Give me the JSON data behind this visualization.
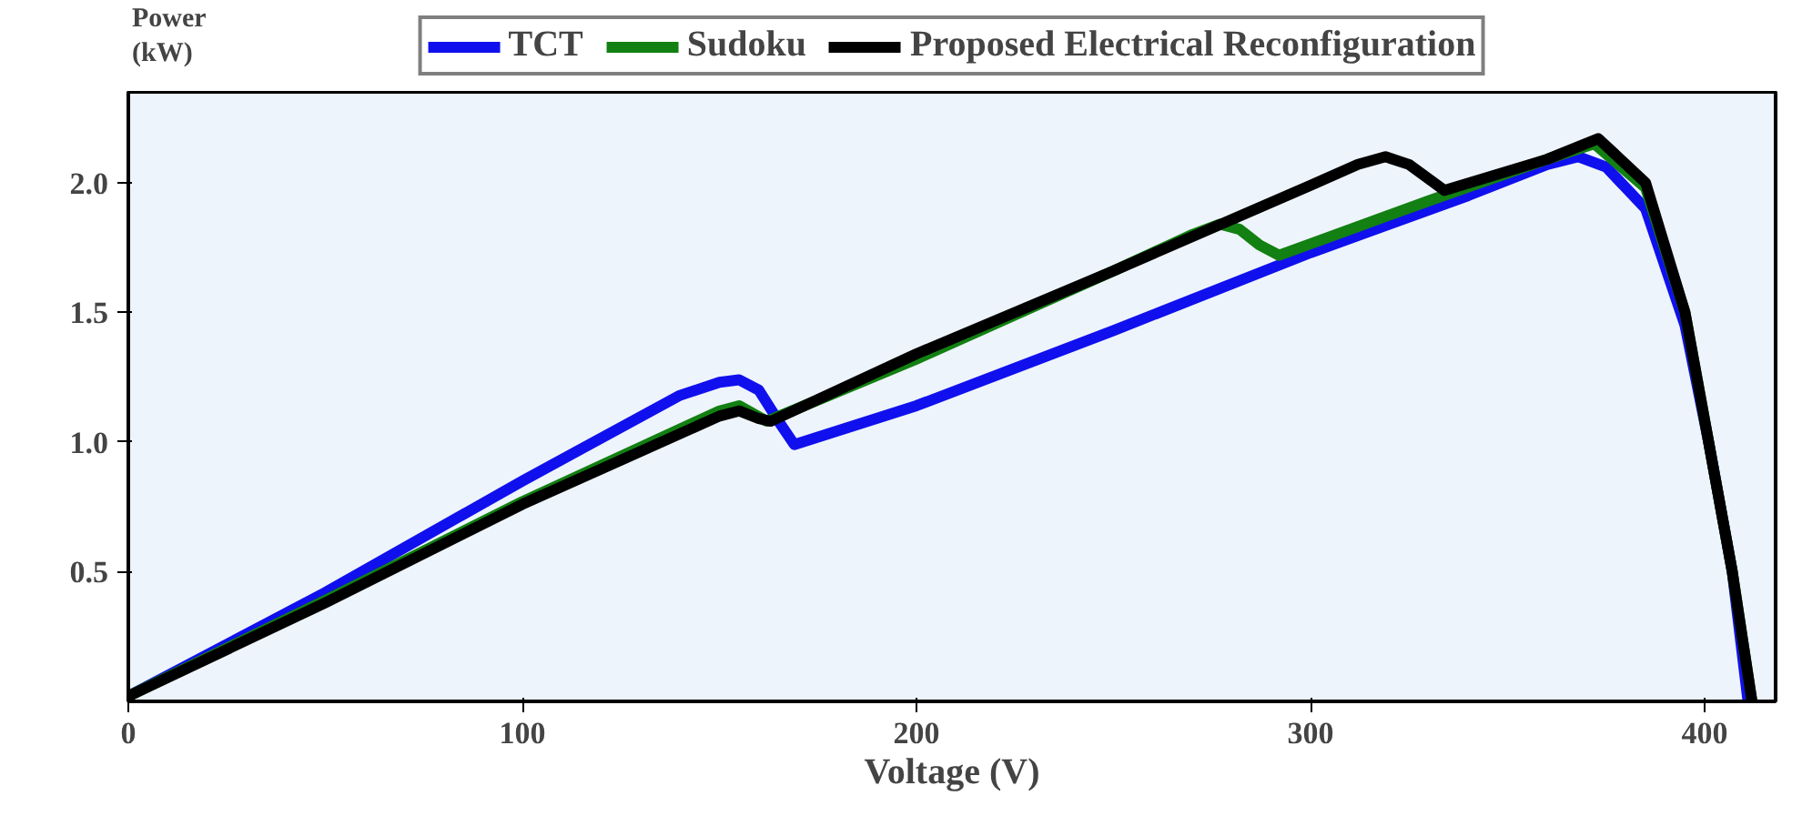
{
  "chart_data": {
    "type": "line",
    "xlabel": "Voltage (V)",
    "ylabel": "Power (kW)",
    "xlim": [
      0,
      418
    ],
    "ylim": [
      0,
      2.35
    ],
    "xticks": [
      0,
      100,
      200,
      300,
      400
    ],
    "yticks": [
      0.5,
      {
        "value": 1,
        "label": "1.0"
      },
      1.5,
      {
        "value": 2,
        "label": "2.0"
      }
    ],
    "grid": false,
    "legend": "top",
    "marker": "none",
    "line_style": "solid",
    "series": [
      {
        "name": "TCT",
        "color": "#1010ee",
        "x": [
          0,
          50,
          100,
          140,
          150,
          155,
          160,
          165,
          169,
          200,
          250,
          300,
          340,
          360,
          368,
          375,
          385,
          395,
          401,
          407,
          411
        ],
        "values": [
          0.02,
          0.42,
          0.85,
          1.18,
          1.23,
          1.24,
          1.2,
          1.08,
          0.99,
          1.14,
          1.43,
          1.73,
          1.95,
          2.07,
          2.1,
          2.06,
          1.9,
          1.45,
          1.0,
          0.5,
          0.0
        ]
      },
      {
        "name": "Sudoku",
        "color": "#128012",
        "x": [
          0,
          50,
          100,
          150,
          155,
          162,
          200,
          250,
          270,
          277,
          282,
          287,
          292,
          330,
          360,
          372,
          385,
          395,
          401,
          407,
          412
        ],
        "values": [
          0.02,
          0.39,
          0.77,
          1.12,
          1.14,
          1.08,
          1.32,
          1.66,
          1.8,
          1.84,
          1.82,
          1.76,
          1.72,
          1.93,
          2.09,
          2.15,
          1.98,
          1.5,
          1.0,
          0.5,
          0.0
        ]
      },
      {
        "name": "Proposed Electrical Reconfiguration",
        "color": "#000000",
        "x": [
          0,
          50,
          100,
          150,
          155,
          160,
          163,
          200,
          250,
          300,
          312,
          319,
          325,
          334,
          360,
          373,
          385,
          395,
          401,
          407,
          412
        ],
        "values": [
          0.02,
          0.38,
          0.76,
          1.1,
          1.12,
          1.09,
          1.08,
          1.34,
          1.66,
          1.99,
          2.07,
          2.1,
          2.07,
          1.97,
          2.09,
          2.17,
          2.0,
          1.5,
          1.0,
          0.5,
          0.0
        ]
      }
    ]
  }
}
